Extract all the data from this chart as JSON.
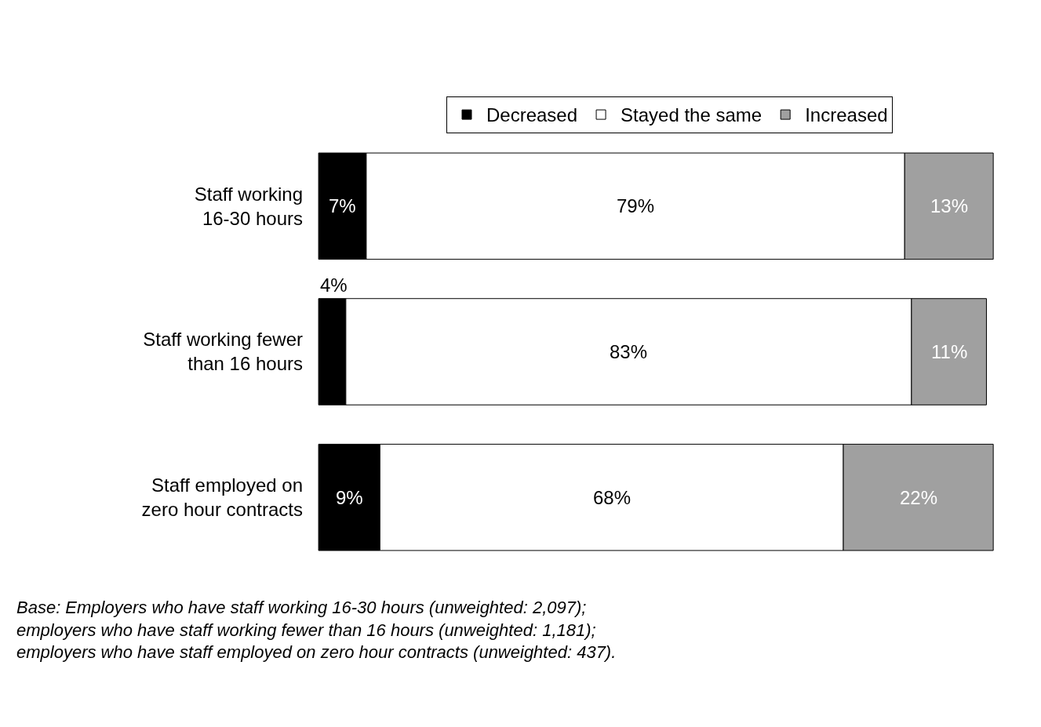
{
  "chart_data": {
    "type": "bar",
    "orientation": "horizontal",
    "stacked": true,
    "legend": "top",
    "tick_labels": "y",
    "categories": [
      "Staff working\n16-30 hours",
      "Staff working fewer\nthan 16 hours",
      "Staff employed on\nzero hour contracts"
    ],
    "series": [
      {
        "name": "Decreased",
        "color": "#000000",
        "values": [
          7,
          4,
          9
        ],
        "value_labels": [
          "7%",
          "4%",
          "9%"
        ]
      },
      {
        "name": "Stayed the same",
        "color": "#ffffff",
        "values": [
          79,
          83,
          68
        ],
        "value_labels": [
          "79%",
          "83%",
          "68%"
        ]
      },
      {
        "name": "Increased",
        "color": "#a0a0a0",
        "values": [
          13,
          11,
          22
        ],
        "value_labels": [
          "13%",
          "11%",
          "22%"
        ]
      }
    ],
    "annotations": [
      "Base: Employers who have staff working 16-30 hours (unweighted: 2,097);\nemployers who have staff working fewer than 16 hours (unweighted: 1,181);\nemployers who have staff employed on zero hour contracts (unweighted: 437)."
    ]
  }
}
